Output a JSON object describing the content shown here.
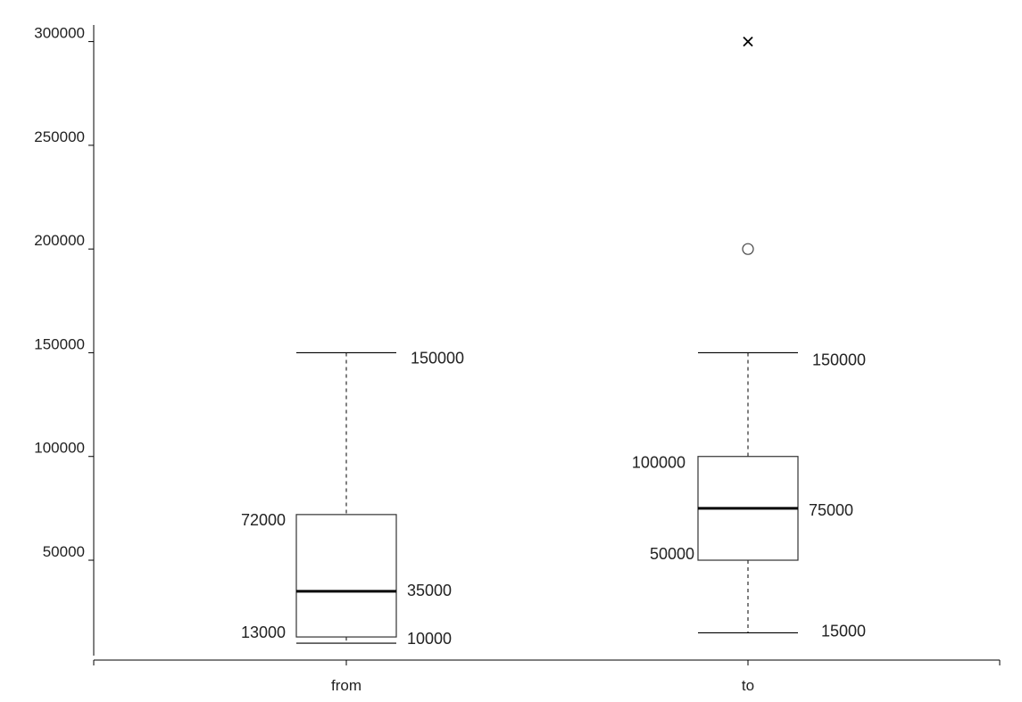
{
  "chart_data": {
    "type": "boxplot",
    "y_ticks": [
      50000,
      100000,
      150000,
      200000,
      250000,
      300000
    ],
    "ylim": [
      4000,
      308000
    ],
    "categories": [
      "from",
      "to"
    ],
    "boxes": [
      {
        "category": "from",
        "whisker_low": 10000,
        "q1": 13000,
        "median": 35000,
        "q3": 72000,
        "whisker_high": 150000,
        "outliers": [],
        "labels": {
          "whisker_high": "150000",
          "q3": "72000",
          "median": "35000",
          "q1": "13000",
          "whisker_low": "10000"
        }
      },
      {
        "category": "to",
        "whisker_low": 15000,
        "q1": 50000,
        "median": 75000,
        "q3": 100000,
        "whisker_high": 150000,
        "outliers": [
          200000
        ],
        "extreme_outliers": [
          300000
        ],
        "labels": {
          "whisker_high": "150000",
          "q3": "100000",
          "median": "75000",
          "q1": "50000",
          "whisker_low": "15000"
        }
      }
    ]
  }
}
